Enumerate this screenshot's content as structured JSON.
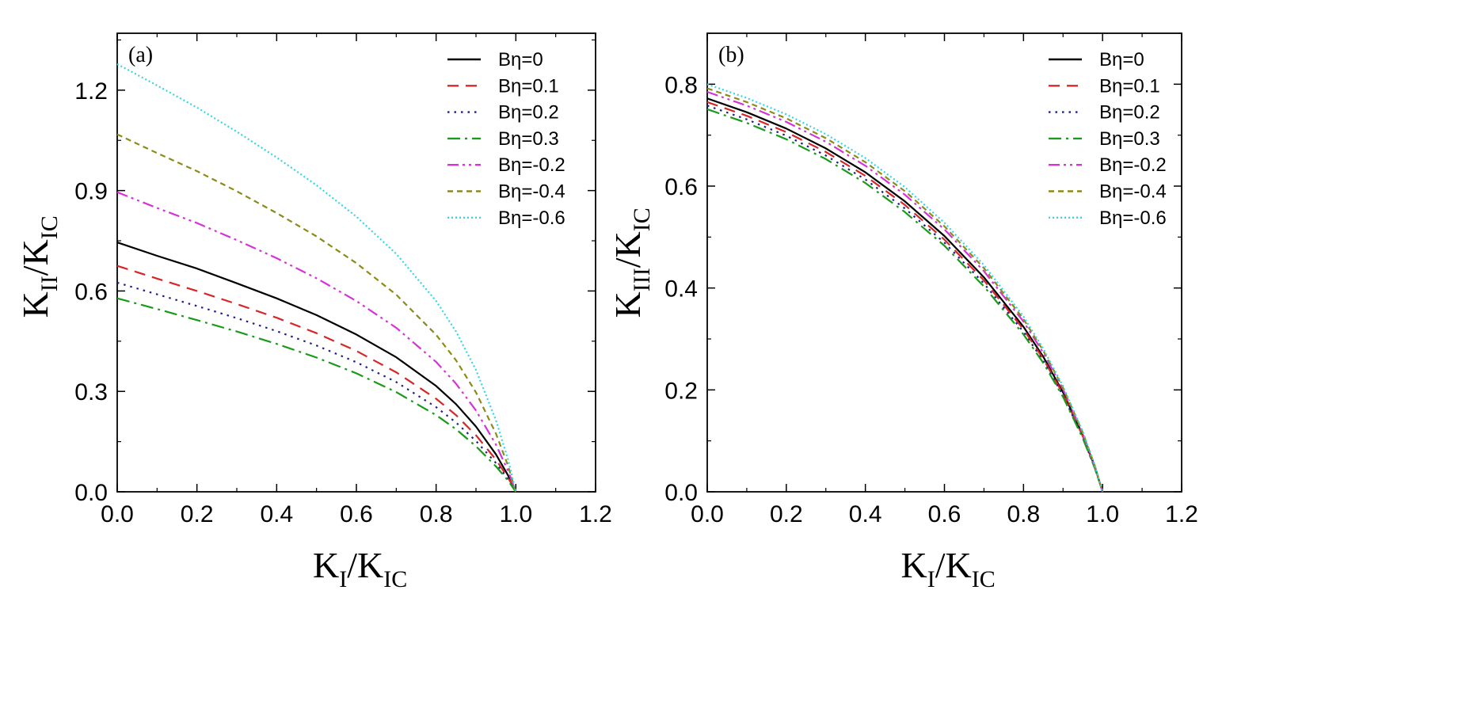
{
  "chart_data": [
    {
      "type": "line",
      "panel_label": "(a)",
      "xlabel": {
        "main": "K",
        "sub1": "I",
        "sep": "/K",
        "sub2": "IC"
      },
      "ylabel": {
        "main": "K",
        "sub1": "II",
        "sep": "/K",
        "sub2": "IC"
      },
      "xlim": [
        0,
        1.2
      ],
      "ylim": [
        0,
        1.37
      ],
      "xticks": [
        "0.0",
        "0.2",
        "0.4",
        "0.6",
        "0.8",
        "1.0",
        "1.2"
      ],
      "xtick_values": [
        0,
        0.2,
        0.4,
        0.6,
        0.8,
        1.0,
        1.2
      ],
      "yticks": [
        "0.0",
        "0.3",
        "0.6",
        "0.9",
        "1.2"
      ],
      "ytick_values": [
        0,
        0.3,
        0.6,
        0.9,
        1.2
      ],
      "legend_position": "top-right",
      "x": [
        0,
        0.1,
        0.2,
        0.3,
        0.4,
        0.5,
        0.6,
        0.7,
        0.8,
        0.85,
        0.9,
        0.95,
        0.98,
        1.0
      ],
      "series": [
        {
          "name": "Bη=0",
          "color": "#000000",
          "dash": "solid",
          "values": [
            0.745,
            0.705,
            0.667,
            0.623,
            0.578,
            0.528,
            0.47,
            0.402,
            0.316,
            0.262,
            0.195,
            0.112,
            0.05,
            0.0
          ]
        },
        {
          "name": "Bη=0.1",
          "color": "#d62728",
          "dash": "dash",
          "values": [
            0.675,
            0.637,
            0.6,
            0.561,
            0.52,
            0.474,
            0.421,
            0.357,
            0.278,
            0.229,
            0.169,
            0.096,
            0.043,
            0.0
          ]
        },
        {
          "name": "Bη=0.2",
          "color": "#1f1f8c",
          "dash": "dot",
          "values": [
            0.625,
            0.59,
            0.555,
            0.519,
            0.48,
            0.437,
            0.387,
            0.328,
            0.253,
            0.207,
            0.152,
            0.086,
            0.038,
            0.0
          ]
        },
        {
          "name": "Bη=0.3",
          "color": "#1a9a1a",
          "dash": "dashdot",
          "values": [
            0.578,
            0.546,
            0.513,
            0.479,
            0.442,
            0.401,
            0.354,
            0.298,
            0.229,
            0.187,
            0.136,
            0.076,
            0.034,
            0.0
          ]
        },
        {
          "name": "Bη=-0.2",
          "color": "#d633d6",
          "dash": "dashdotdot",
          "values": [
            0.895,
            0.848,
            0.803,
            0.752,
            0.698,
            0.638,
            0.57,
            0.49,
            0.388,
            0.323,
            0.243,
            0.141,
            0.064,
            0.0
          ]
        },
        {
          "name": "Bη=-0.4",
          "color": "#8b8b1a",
          "dash": "shortdash",
          "values": [
            1.068,
            1.012,
            0.958,
            0.898,
            0.833,
            0.763,
            0.683,
            0.589,
            0.469,
            0.393,
            0.297,
            0.174,
            0.079,
            0.0
          ]
        },
        {
          "name": "Bη=-0.6",
          "color": "#33d6e6",
          "dash": "shortdot",
          "values": [
            1.278,
            1.214,
            1.148,
            1.076,
            0.999,
            0.916,
            0.822,
            0.711,
            0.57,
            0.479,
            0.364,
            0.214,
            0.098,
            0.0
          ]
        }
      ]
    },
    {
      "type": "line",
      "panel_label": "(b)",
      "xlabel": {
        "main": "K",
        "sub1": "I",
        "sep": "/K",
        "sub2": "IC"
      },
      "ylabel": {
        "main": "K",
        "sub1": "III",
        "sep": "/K",
        "sub2": "IC"
      },
      "xlim": [
        0,
        1.2
      ],
      "ylim": [
        0,
        0.9
      ],
      "xticks": [
        "0.0",
        "0.2",
        "0.4",
        "0.6",
        "0.8",
        "1.0",
        "1.2"
      ],
      "xtick_values": [
        0,
        0.2,
        0.4,
        0.6,
        0.8,
        1.0,
        1.2
      ],
      "yticks": [
        "0.0",
        "0.2",
        "0.4",
        "0.6",
        "0.8"
      ],
      "ytick_values": [
        0,
        0.2,
        0.4,
        0.6,
        0.8
      ],
      "legend_position": "top-right",
      "x": [
        0,
        0.1,
        0.2,
        0.3,
        0.4,
        0.5,
        0.6,
        0.7,
        0.8,
        0.85,
        0.9,
        0.95,
        0.98,
        1.0
      ],
      "series": [
        {
          "name": "Bη=0",
          "color": "#000000",
          "dash": "solid",
          "values": [
            0.772,
            0.745,
            0.713,
            0.674,
            0.627,
            0.57,
            0.502,
            0.421,
            0.324,
            0.265,
            0.195,
            0.111,
            0.05,
            0.0
          ]
        },
        {
          "name": "Bη=0.1",
          "color": "#d62728",
          "dash": "dash",
          "values": [
            0.765,
            0.738,
            0.706,
            0.667,
            0.62,
            0.563,
            0.495,
            0.415,
            0.319,
            0.261,
            0.192,
            0.109,
            0.049,
            0.0
          ]
        },
        {
          "name": "Bη=0.2",
          "color": "#1f1f8c",
          "dash": "dot",
          "values": [
            0.758,
            0.731,
            0.699,
            0.66,
            0.613,
            0.556,
            0.489,
            0.409,
            0.314,
            0.257,
            0.189,
            0.107,
            0.048,
            0.0
          ]
        },
        {
          "name": "Bη=0.3",
          "color": "#1a9a1a",
          "dash": "dashdot",
          "values": [
            0.751,
            0.724,
            0.692,
            0.653,
            0.606,
            0.549,
            0.483,
            0.403,
            0.309,
            0.253,
            0.186,
            0.105,
            0.047,
            0.0
          ]
        },
        {
          "name": "Bη=-0.2",
          "color": "#d633d6",
          "dash": "dashdotdot",
          "values": [
            0.785,
            0.758,
            0.726,
            0.687,
            0.64,
            0.583,
            0.515,
            0.433,
            0.334,
            0.273,
            0.201,
            0.114,
            0.051,
            0.0
          ]
        },
        {
          "name": "Bη=-0.4",
          "color": "#8b8b1a",
          "dash": "shortdash",
          "values": [
            0.792,
            0.765,
            0.733,
            0.694,
            0.647,
            0.59,
            0.521,
            0.439,
            0.339,
            0.277,
            0.204,
            0.116,
            0.052,
            0.0
          ]
        },
        {
          "name": "Bη=-0.6",
          "color": "#33d6e6",
          "dash": "shortdot",
          "values": [
            0.8,
            0.773,
            0.741,
            0.702,
            0.655,
            0.598,
            0.528,
            0.445,
            0.344,
            0.281,
            0.207,
            0.118,
            0.053,
            0.0
          ]
        }
      ]
    }
  ]
}
